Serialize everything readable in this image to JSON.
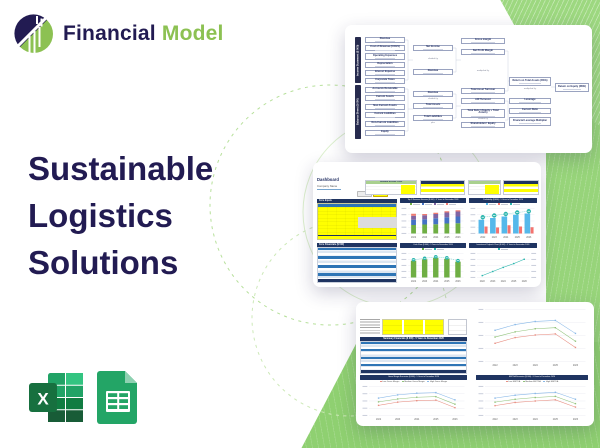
{
  "brand": {
    "word1": "Financial",
    "word2": "Model"
  },
  "hero": {
    "line1": "Sustainable",
    "line2": "Logistics",
    "line3": "Solutions"
  },
  "platform_icons": {
    "excel": "Microsoft Excel",
    "sheets": "Google Sheets"
  },
  "colors": {
    "navy": "#221b52",
    "brand_green": "#8cc152",
    "deco_green": "#95d378",
    "section_navy": "#1f3461",
    "table_header_blue": "#2e75b6",
    "row_alt_blue": "#dce6f1",
    "highlight_yellow": "#ffff00",
    "assumption_green": "#a9d08e",
    "chart_green": "#6fae44",
    "chart_blue": "#4472c4",
    "chart_purple": "#8064a2",
    "chart_red": "#ef7b70",
    "chart_lightblue": "#55b8ea",
    "chart_teal": "#2ab5ad",
    "line_red": "#e89084",
    "line_green": "#93c47d",
    "line_blue": "#8ab9e8"
  },
  "dupont": {
    "strip_income": "Income Statement ($ 000)",
    "strip_balance": "Balance Sheet ($ 000)",
    "income_items": [
      "Revenue",
      "Cost of Revenue (COGS)",
      "Operating Expenses",
      "Depreciation",
      "Interest Expense",
      "Corporate Taxes"
    ],
    "balance_items": [
      "Accounts Receivable",
      "Current Assets",
      "Non-Current Assets",
      "Current Liabilities",
      "Non-Current Liabilities",
      "Equity"
    ],
    "calc_nodes": [
      "Net Income",
      "Revenue",
      "Revenue",
      "Total Assets",
      "Total Liabilities",
      "Gross margin",
      "Net Profit Margin",
      "Total Asset Turnover",
      "A/R Turnover",
      "Total Debt / (Equity + Total Assets)",
      "Shareholders' Equity",
      "Return on Total Assets (ROA)",
      "Leverage",
      "Current Ratio",
      "Financial Leverage Multiplier",
      "Return on Equity (ROE)"
    ],
    "operators": [
      "divided by",
      "divided by",
      "plus",
      "multiplied by",
      "divided by",
      "multiplied by"
    ]
  },
  "dashboard": {
    "title": "Dashboard",
    "subtitle": "Company Name",
    "assumptions_header": "GENERAL ASSUMPTIONS",
    "core_inputs_label": "Core Inputs",
    "core_financials_label": "Core Financials ($ 000)"
  },
  "scenarios": {
    "summary_label": "Summary Financials ($ 000) - 5 Years to December 2026"
  },
  "chart_data": [
    {
      "id": "top5-revenue-streams",
      "type": "bar",
      "stacked": true,
      "title": "Top 5 Revenue Streams ($ 000) - 5 Years to December 2026",
      "categories": [
        "2022",
        "2023",
        "2024",
        "2025",
        "2026"
      ],
      "series": [
        {
          "name": "stream-green",
          "color": "#6fae44",
          "values": [
            34,
            36,
            37,
            40,
            41
          ]
        },
        {
          "name": "stream-blue",
          "color": "#4472c4",
          "values": [
            21,
            21,
            24,
            25,
            27
          ]
        },
        {
          "name": "stream-purple",
          "color": "#8064a2",
          "values": [
            16,
            16,
            17,
            19,
            20
          ]
        },
        {
          "name": "stream-red",
          "color": "#ef7b70",
          "values": [
            8,
            5,
            5,
            5,
            5
          ]
        }
      ]
    },
    {
      "id": "profitability",
      "type": "bar",
      "title": "Profitability ($ 000) - 5 Years to December 2026",
      "categories": [
        "2022",
        "2023",
        "2024",
        "2025",
        "2026"
      ],
      "series": [
        {
          "name": "bars-blue",
          "color": "#55b8ea",
          "values": [
            55,
            62,
            68,
            75,
            80
          ]
        },
        {
          "name": "bars-red",
          "color": "#f4736e",
          "values": [
            28,
            24,
            33,
            28,
            25
          ]
        },
        {
          "name": "markers-teal",
          "color": "#2ab5ad",
          "values": [
            65,
            72,
            78,
            84,
            89
          ]
        }
      ]
    },
    {
      "id": "cash-flow",
      "type": "bar",
      "title": "Cash Flow ($ 000) - 5 Years to December 2026",
      "categories": [
        "2022",
        "2023",
        "2024",
        "2025",
        "2026"
      ],
      "series": [
        {
          "name": "bars-green",
          "color": "#6fae44",
          "values": [
            70,
            76,
            82,
            78,
            66
          ]
        },
        {
          "name": "markers-teal",
          "color": "#2ab5ad",
          "values": [
            74,
            80,
            86,
            82,
            70
          ]
        }
      ]
    },
    {
      "id": "investment-payback",
      "type": "line",
      "title": "Investment Payback Chart ($ 000) - 5 Years to December 2026",
      "categories": [
        "2022",
        "2023",
        "2024",
        "2025",
        "2026"
      ],
      "series": [
        {
          "name": "cumulative-cash",
          "color": "#2ab5ad",
          "values": [
            8,
            25,
            42,
            58,
            76
          ]
        }
      ]
    },
    {
      "id": "scenario-lines",
      "type": "line",
      "title": "",
      "categories": [
        "2022",
        "2023",
        "2024",
        "2025",
        "2026"
      ],
      "series": [
        {
          "name": "high",
          "color": "#8ab9e8",
          "values": [
            60,
            71,
            77,
            79,
            54
          ]
        },
        {
          "name": "medium",
          "color": "#93c47d",
          "values": [
            47,
            57,
            63,
            65,
            39
          ]
        },
        {
          "name": "low",
          "color": "#e89084",
          "values": [
            35,
            46,
            51,
            53,
            27
          ]
        }
      ]
    },
    {
      "id": "gross-margin-scenarios",
      "type": "line",
      "title": "Gross Margin Scenarios ($ 000) - 5 Years to December 2026",
      "categories": [
        "2022",
        "2023",
        "2024",
        "2025",
        "2026"
      ],
      "legend": [
        "Low Gross Margin",
        "Medium Gross Margin",
        "High Gross Margin"
      ],
      "series": [
        {
          "name": "High Gross Margin",
          "color": "#8ab9e8",
          "values": [
            60,
            71,
            77,
            79,
            54
          ]
        },
        {
          "name": "Medium Gross Margin",
          "color": "#93c47d",
          "values": [
            47,
            57,
            63,
            65,
            39
          ]
        },
        {
          "name": "Low Gross Margin",
          "color": "#e89084",
          "values": [
            35,
            46,
            51,
            53,
            27
          ]
        }
      ]
    },
    {
      "id": "ebitda-scenarios",
      "type": "line",
      "title": "EBITDA Scenarios ($ 000) - 5 Years to December 2026",
      "categories": [
        "2022",
        "2023",
        "2024",
        "2025",
        "2026"
      ],
      "legend": [
        "Low EBITDA",
        "Medium EBITDA",
        "High EBITDA"
      ],
      "series": [
        {
          "name": "High EBITDA",
          "color": "#8ab9e8",
          "values": [
            60,
            70,
            76,
            80,
            56
          ]
        },
        {
          "name": "Medium EBITDA",
          "color": "#93c47d",
          "values": [
            46,
            56,
            62,
            66,
            41
          ]
        },
        {
          "name": "Low EBITDA",
          "color": "#e89084",
          "values": [
            34,
            45,
            50,
            54,
            29
          ]
        }
      ]
    }
  ]
}
